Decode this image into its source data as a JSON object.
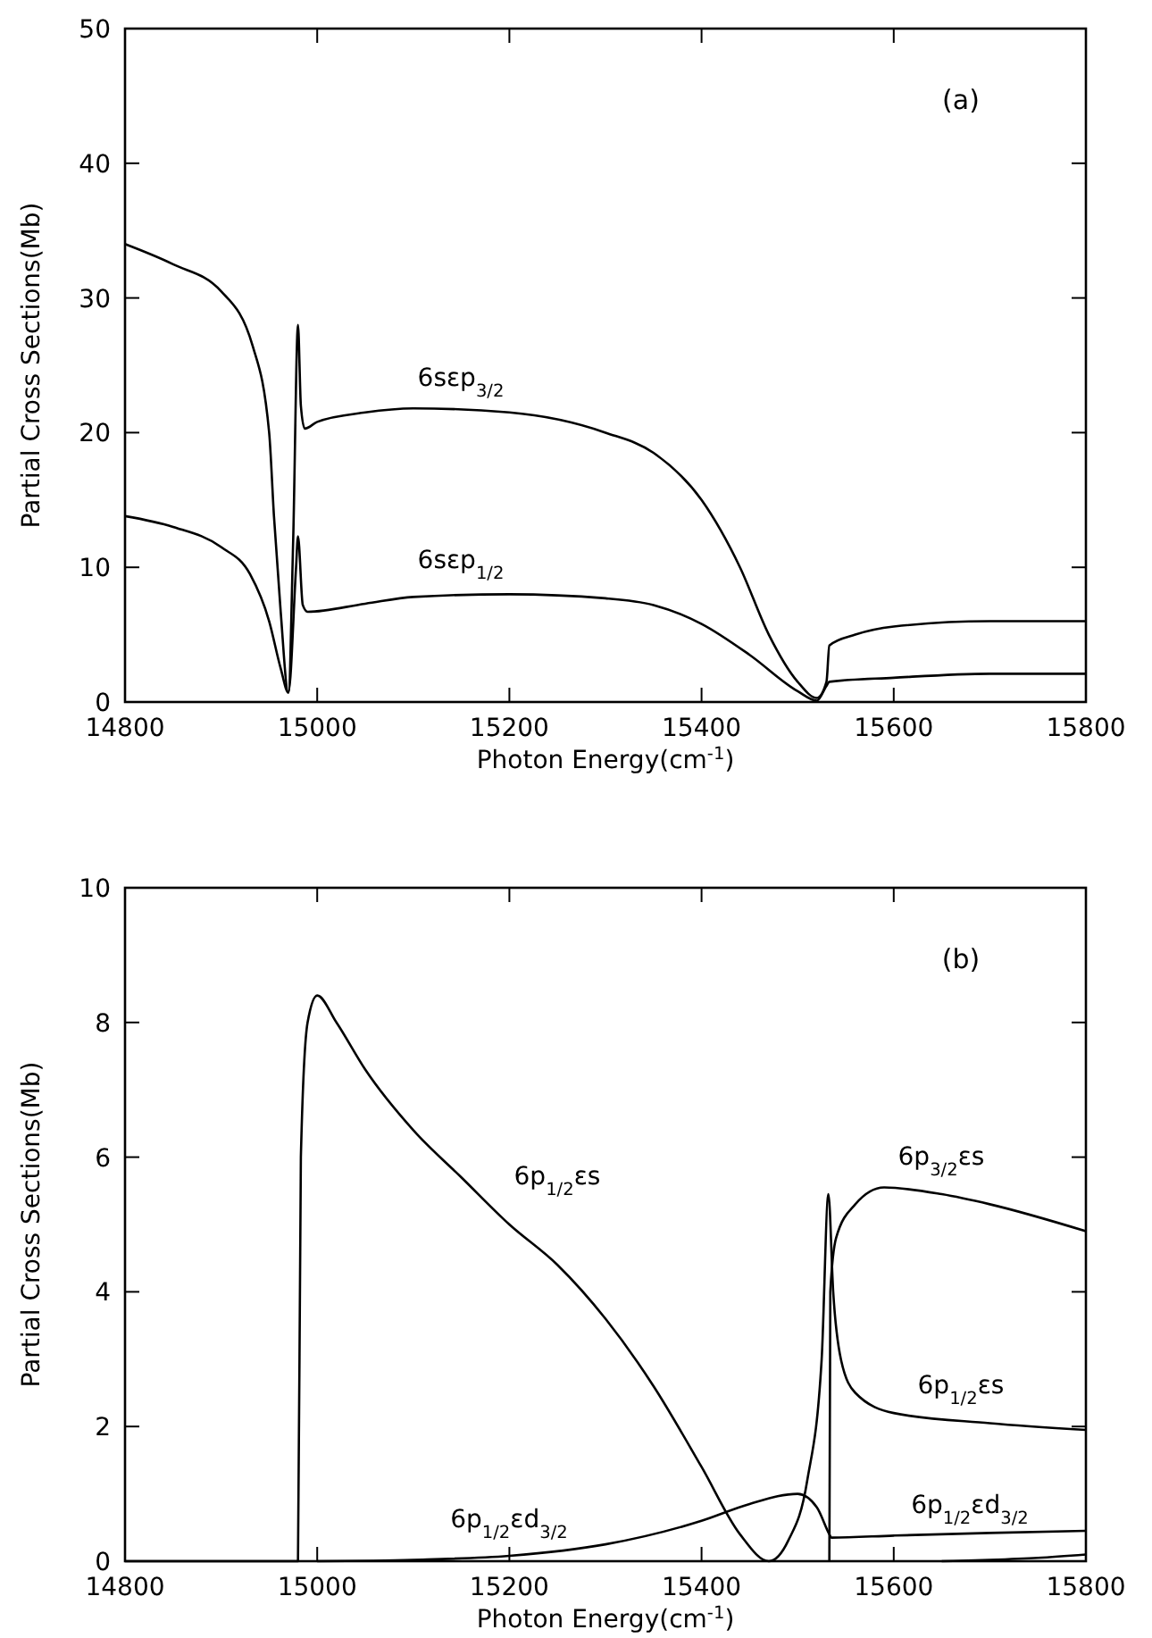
{
  "chart_data": [
    {
      "type": "line",
      "xlabel": "Photon Energy(cm$^{-1}$)",
      "ylabel": "Partial Cross Sections(Mb)",
      "xlim": [
        14800,
        15800
      ],
      "xticks": [
        14800,
        15000,
        15200,
        15400,
        15600,
        15800
      ],
      "ylim": [
        0,
        50
      ],
      "yticks": [
        0,
        10,
        20,
        30,
        40,
        50
      ],
      "grid": false,
      "line_style": "solid",
      "marker": "none",
      "annotations": [
        "(a)"
      ],
      "series": [
        {
          "name": "6sεp$_{3/2}$",
          "color": "#000000",
          "x": [
            14800,
            14850,
            14900,
            14933,
            14950,
            14955,
            14962,
            14970,
            14975,
            14980,
            14983,
            14987,
            15000,
            15050,
            15100,
            15200,
            15300,
            15350,
            15400,
            15440,
            15470,
            15500,
            15520,
            15530,
            15533,
            15560,
            15600,
            15700,
            15800
          ],
          "values": [
            34,
            32.5,
            30.5,
            26.4,
            20,
            13.8,
            6.7,
            0.7,
            12,
            28,
            22,
            20.3,
            20.8,
            21.5,
            21.8,
            21.5,
            20,
            18.5,
            15,
            10,
            5,
            1.5,
            0.3,
            1.5,
            4.2,
            5,
            5.6,
            6,
            6
          ]
        },
        {
          "name": "6sεp$_{1/2}$",
          "color": "#000000",
          "x": [
            14800,
            14850,
            14900,
            14930,
            14950,
            14962,
            14970,
            14978,
            14980,
            14985,
            14990,
            15050,
            15100,
            15200,
            15300,
            15350,
            15400,
            15450,
            15500,
            15520,
            15530,
            15533,
            15600,
            15700,
            15800
          ],
          "values": [
            13.8,
            13,
            11.5,
            9.5,
            6,
            2.5,
            0.7,
            10,
            12.3,
            7.2,
            6.7,
            7.3,
            7.8,
            8,
            7.7,
            7.2,
            5.8,
            3.5,
            0.8,
            0.1,
            1.2,
            1.5,
            1.8,
            2.1,
            2.1
          ]
        }
      ]
    },
    {
      "type": "line",
      "xlabel": "Photon Energy(cm$^{-1}$)",
      "ylabel": "Partial Cross Sections(Mb)",
      "xlim": [
        14800,
        15800
      ],
      "xticks": [
        14800,
        15000,
        15200,
        15400,
        15600,
        15800
      ],
      "ylim": [
        0,
        10
      ],
      "yticks": [
        0,
        2,
        4,
        6,
        8,
        10
      ],
      "grid": false,
      "line_style": "solid",
      "marker": "none",
      "annotations": [
        "(b)"
      ],
      "series": [
        {
          "name": "6p$_{1/2}$εs",
          "color": "#000000",
          "x": [
            14800,
            14980,
            14983,
            14990,
            15000,
            15020,
            15050,
            15100,
            15150,
            15200,
            15250,
            15300,
            15350,
            15400,
            15440,
            15470,
            15490,
            15510,
            15525,
            15532,
            15537,
            15545,
            15560,
            15600,
            15700,
            15800
          ],
          "values": [
            0,
            0,
            6,
            8,
            8.4,
            8,
            7.3,
            6.4,
            5.7,
            5,
            4.4,
            3.6,
            2.6,
            1.4,
            0.4,
            0,
            0.3,
            1.2,
            3,
            5.45,
            4,
            3,
            2.5,
            2.2,
            2.05,
            1.95
          ]
        },
        {
          "name": "6p$_{3/2}$εs",
          "color": "#000000",
          "x": [
            15533,
            15534,
            15540,
            15560,
            15590,
            15650,
            15700,
            15800
          ],
          "values": [
            0,
            4,
            4.8,
            5.3,
            5.55,
            5.45,
            5.3,
            4.9
          ]
        },
        {
          "name": "6p$_{1/2}$εd$_{3/2}$",
          "color": "#000000",
          "x": [
            15000,
            15100,
            15200,
            15300,
            15400,
            15450,
            15500,
            15520,
            15533,
            15535,
            15600,
            15700,
            15800
          ],
          "values": [
            0,
            0.02,
            0.08,
            0.25,
            0.6,
            0.85,
            1,
            0.8,
            0.4,
            0.35,
            0.38,
            0.42,
            0.45
          ]
        },
        {
          "color": "#000000",
          "x": [
            15650,
            15700,
            15750,
            15800
          ],
          "values": [
            0,
            0.02,
            0.05,
            0.1
          ]
        }
      ]
    }
  ]
}
